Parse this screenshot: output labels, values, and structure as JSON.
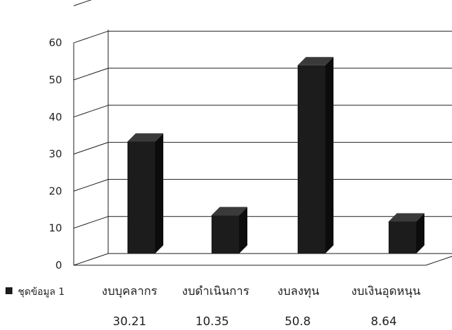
{
  "chart_data": {
    "type": "bar",
    "style": "3d",
    "categories": [
      "งบบุคลากร",
      "งบดำเนินการ",
      "งบลงทุน",
      "งบเงินอุดหนุน"
    ],
    "series": [
      {
        "name": "ชุดข้อมูล 1",
        "values": [
          30.21,
          10.35,
          50.8,
          8.64
        ]
      }
    ],
    "value_labels": [
      "30.21",
      "10.35",
      "50.8",
      "8.64"
    ],
    "y_ticks": [
      "0",
      "10",
      "20",
      "30",
      "40",
      "50",
      "60"
    ],
    "ylim": [
      0,
      60
    ],
    "grid": true,
    "legend_position": "left of category labels",
    "colors": {
      "bar_front": "#1c1c1c",
      "bar_side": "#0c0c0c",
      "bar_top": "#3a3a3a",
      "legend_swatch": "#1c1c1c"
    }
  }
}
